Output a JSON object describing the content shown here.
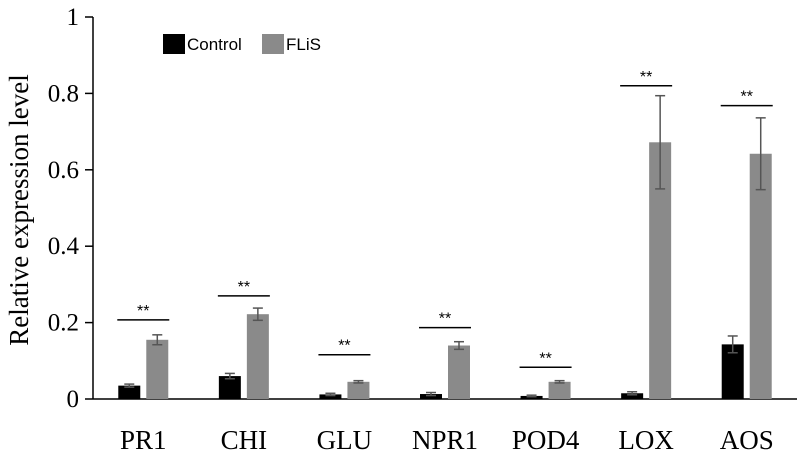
{
  "chart_data": {
    "type": "bar",
    "title": "",
    "xlabel": "",
    "ylabel": "Relative expression level",
    "ylim": [
      0,
      1
    ],
    "yticks": [
      0,
      0.2,
      0.4,
      0.6,
      0.8,
      1
    ],
    "ytick_labels": [
      "0",
      "0.2",
      "0.4",
      "0.6",
      "0.8",
      "1"
    ],
    "grid": false,
    "legend_position": "top-left",
    "categories": [
      "PR1",
      "CHI",
      "GLU",
      "NPR1",
      "POD4",
      "LOX",
      "AOS"
    ],
    "series": [
      {
        "name": "Control",
        "color": "#000000",
        "values": [
          0.035,
          0.06,
          0.012,
          0.013,
          0.008,
          0.015,
          0.143
        ],
        "errors": [
          0.004,
          0.007,
          0.003,
          0.004,
          0.002,
          0.004,
          0.022
        ]
      },
      {
        "name": "FLiS",
        "color": "#8a8a8a",
        "values": [
          0.155,
          0.222,
          0.045,
          0.14,
          0.045,
          0.672,
          0.642
        ],
        "errors": [
          0.013,
          0.016,
          0.003,
          0.01,
          0.003,
          0.122,
          0.094
        ]
      }
    ],
    "annotations": [
      {
        "category": "PR1",
        "text": "**",
        "y": 0.207
      },
      {
        "category": "CHI",
        "text": "**",
        "y": 0.27
      },
      {
        "category": "GLU",
        "text": "**",
        "y": 0.116
      },
      {
        "category": "NPR1",
        "text": "**",
        "y": 0.187
      },
      {
        "category": "POD4",
        "text": "**",
        "y": 0.083
      },
      {
        "category": "LOX",
        "text": "**",
        "y": 0.82
      },
      {
        "category": "AOS",
        "text": "**",
        "y": 0.768
      }
    ]
  }
}
